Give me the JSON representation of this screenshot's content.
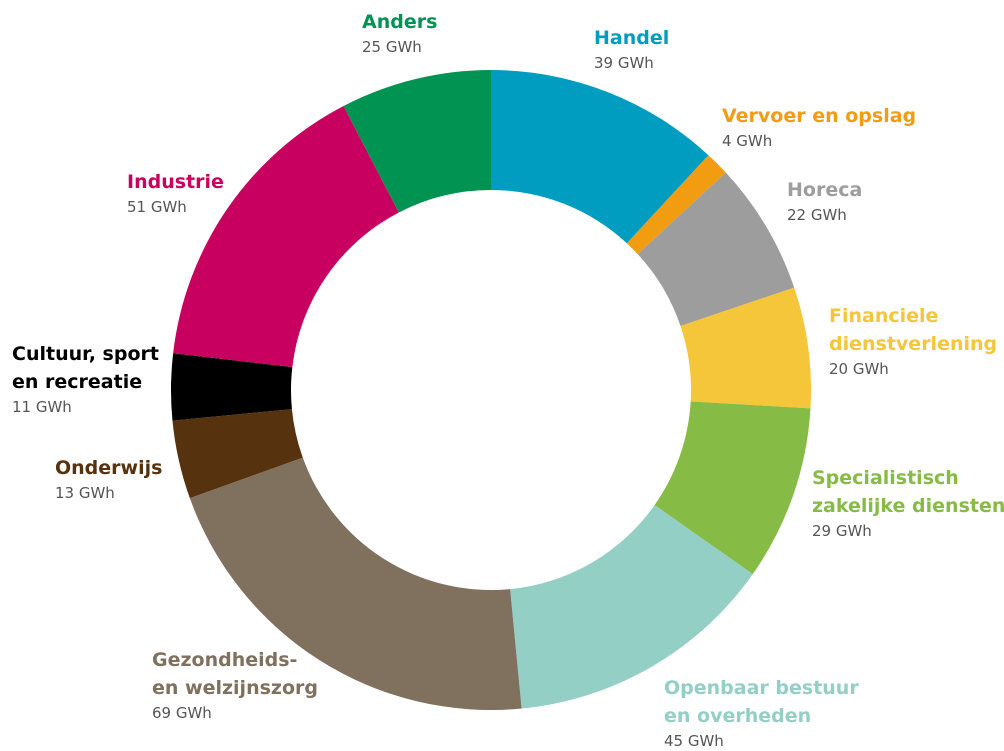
{
  "chart_data": {
    "type": "donut",
    "categories": [
      "Handel",
      "Vervoer en opslag",
      "Horeca",
      "Financiele\ndienstverlening",
      "Specialistisch\nzakelijke diensten",
      "Openbaar bestuur\nen overheden",
      "Gezondheids-\nen welzijnszorg",
      "Onderwijs",
      "Cultuur, sport\nen recreatie",
      "Industrie",
      "Anders"
    ],
    "values": [
      39,
      4,
      22,
      20,
      29,
      45,
      69,
      13,
      11,
      51,
      25
    ],
    "value_labels": [
      "39 GWh",
      "4 GWh",
      "22 GWh",
      "20 GWh",
      "29 GWh",
      "45 GWh",
      "69 GWh",
      "13 GWh",
      "11 GWh",
      "51 GWh",
      "25 GWh"
    ],
    "colors": [
      "#009dc1",
      "#f29c12",
      "#9d9d9d",
      "#f5c53a",
      "#86bb45",
      "#93cfc4",
      "#80705e",
      "#56320e",
      "#000000",
      "#c8005f",
      "#009352"
    ]
  }
}
